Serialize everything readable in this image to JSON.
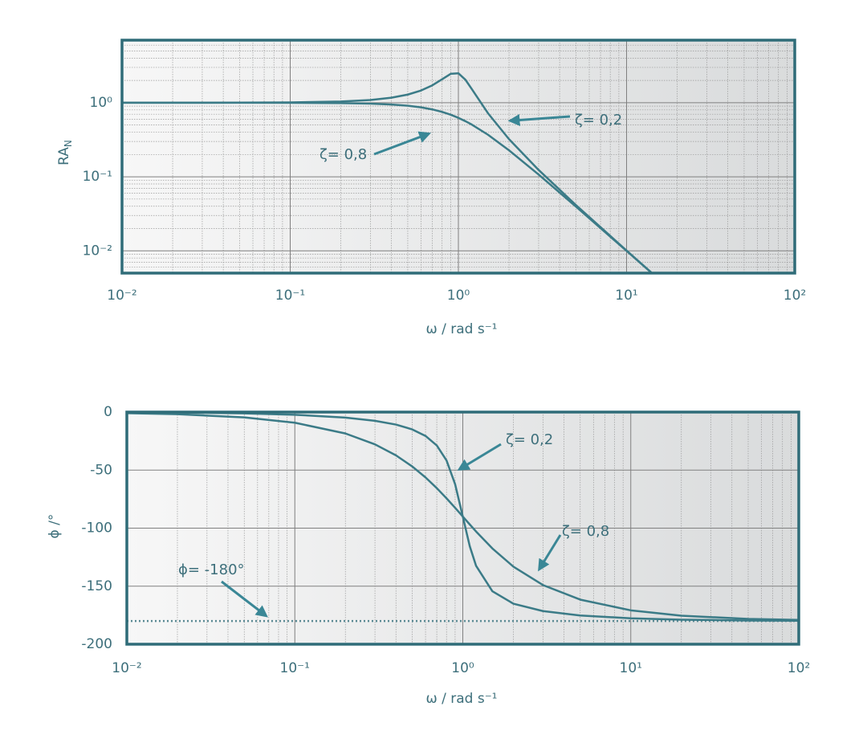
{
  "chart_data": [
    {
      "type": "line",
      "ylabel": "RA",
      "ylabel_subscript": "N",
      "xlabel": "ω / rad s⁻¹",
      "xscale": "log",
      "yscale": "log",
      "grid": true,
      "xlim": [
        0.01,
        100
      ],
      "ylim": [
        0.005,
        7
      ],
      "xticks": [
        {
          "value": 0.01,
          "label": "10⁻²"
        },
        {
          "value": 0.1,
          "label": "10⁻¹"
        },
        {
          "value": 1,
          "label": "10⁰"
        },
        {
          "value": 10,
          "label": "10¹"
        },
        {
          "value": 100,
          "label": "10²"
        }
      ],
      "yticks": [
        {
          "value": 0.01,
          "label": "10⁻²"
        },
        {
          "value": 0.1,
          "label": "10⁻¹"
        },
        {
          "value": 1,
          "label": "10⁰"
        }
      ],
      "xminor": [
        0.02,
        0.03,
        0.04,
        0.05,
        0.06,
        0.07,
        0.08,
        0.09,
        0.2,
        0.3,
        0.4,
        0.5,
        0.6,
        0.7,
        0.8,
        0.9,
        2,
        3,
        4,
        5,
        6,
        7,
        8,
        9,
        20,
        30,
        40,
        50,
        60,
        70,
        80,
        90
      ],
      "yminor": [
        0.006,
        0.007,
        0.008,
        0.009,
        0.02,
        0.03,
        0.04,
        0.05,
        0.06,
        0.07,
        0.08,
        0.09,
        0.2,
        0.3,
        0.4,
        0.5,
        0.6,
        0.7,
        0.8,
        0.9,
        2,
        3,
        4,
        5,
        6
      ],
      "x": [
        0.01,
        0.02,
        0.05,
        0.1,
        0.2,
        0.3,
        0.4,
        0.5,
        0.6,
        0.7,
        0.8,
        0.9,
        1,
        1.1,
        1.2,
        1.5,
        2,
        3,
        5,
        10,
        14
      ],
      "series": [
        {
          "color": "#3b7b87",
          "values": [
            1.0001,
            1.0004,
            1.0023,
            1.0093,
            1.0381,
            1.0895,
            1.1695,
            1.2883,
            1.463,
            1.7188,
            2.0761,
            2.4566,
            2.5,
            2.0511,
            1.5357,
            0.7212,
            0.3221,
            0.1236,
            0.04152,
            0.01009,
            0.005126
          ]
        },
        {
          "color": "#3b7b87",
          "values": [
            1.0,
            0.9996,
            0.9993,
            0.9972,
            0.9882,
            0.972,
            0.9469,
            0.9119,
            0.8667,
            0.8126,
            0.7521,
            0.6885,
            0.625,
            0.5642,
            0.5077,
            0.3695,
            0.228,
            0.1072,
            0.03953,
            0.009972,
            0.005095
          ]
        }
      ],
      "annotations": [
        "ζ= 0,2",
        "ζ= 0,8"
      ]
    },
    {
      "type": "line",
      "ylabel": "ϕ /°",
      "xlabel": "ω / rad s⁻¹",
      "xscale": "log",
      "yscale": "linear",
      "grid": true,
      "xlim": [
        0.01,
        100
      ],
      "ylim": [
        -200,
        0
      ],
      "xticks": [
        {
          "value": 0.01,
          "label": "10⁻²"
        },
        {
          "value": 0.1,
          "label": "10⁻¹"
        },
        {
          "value": 1,
          "label": "10⁰"
        },
        {
          "value": 10,
          "label": "10¹"
        },
        {
          "value": 100,
          "label": "10²"
        }
      ],
      "yticks": [
        0,
        -50,
        -100,
        -150,
        -200
      ],
      "xminor": [
        0.02,
        0.03,
        0.04,
        0.05,
        0.06,
        0.07,
        0.08,
        0.09,
        0.2,
        0.3,
        0.4,
        0.5,
        0.6,
        0.7,
        0.8,
        0.9,
        2,
        3,
        4,
        5,
        6,
        7,
        8,
        9,
        20,
        30,
        40,
        50,
        60,
        70,
        80,
        90
      ],
      "x": [
        0.01,
        0.02,
        0.05,
        0.1,
        0.2,
        0.3,
        0.4,
        0.5,
        0.6,
        0.7,
        0.8,
        0.9,
        1,
        1.1,
        1.2,
        1.5,
        2,
        3,
        5,
        10,
        20,
        50,
        100
      ],
      "series": [
        {
          "color": "#3b7b87",
          "values": [
            -0.23,
            -0.46,
            -1.15,
            -2.31,
            -4.76,
            -7.51,
            -10.78,
            -14.93,
            -20.56,
            -28.77,
            -41.63,
            -62.18,
            -90,
            -115.52,
            -132.51,
            -154.36,
            -165.07,
            -171.47,
            -175.24,
            -177.69,
            -178.85,
            -179.54,
            -179.77
          ]
        },
        {
          "color": "#3b7b87",
          "values": [
            -0.92,
            -1.83,
            -4.59,
            -9.18,
            -18.43,
            -27.81,
            -37.3,
            -46.85,
            -56.31,
            -65.52,
            -74.29,
            -82.48,
            -90,
            -96.8,
            -102.91,
            -117.51,
            -133.15,
            -149.04,
            -161.57,
            -170.82,
            -175.41,
            -178.17,
            -179.08
          ]
        }
      ],
      "hline": -180,
      "hline_color": "#5b8a94",
      "annotations": [
        "ζ= 0,2",
        "ζ= 0,8",
        "ϕ= -180°"
      ]
    }
  ]
}
